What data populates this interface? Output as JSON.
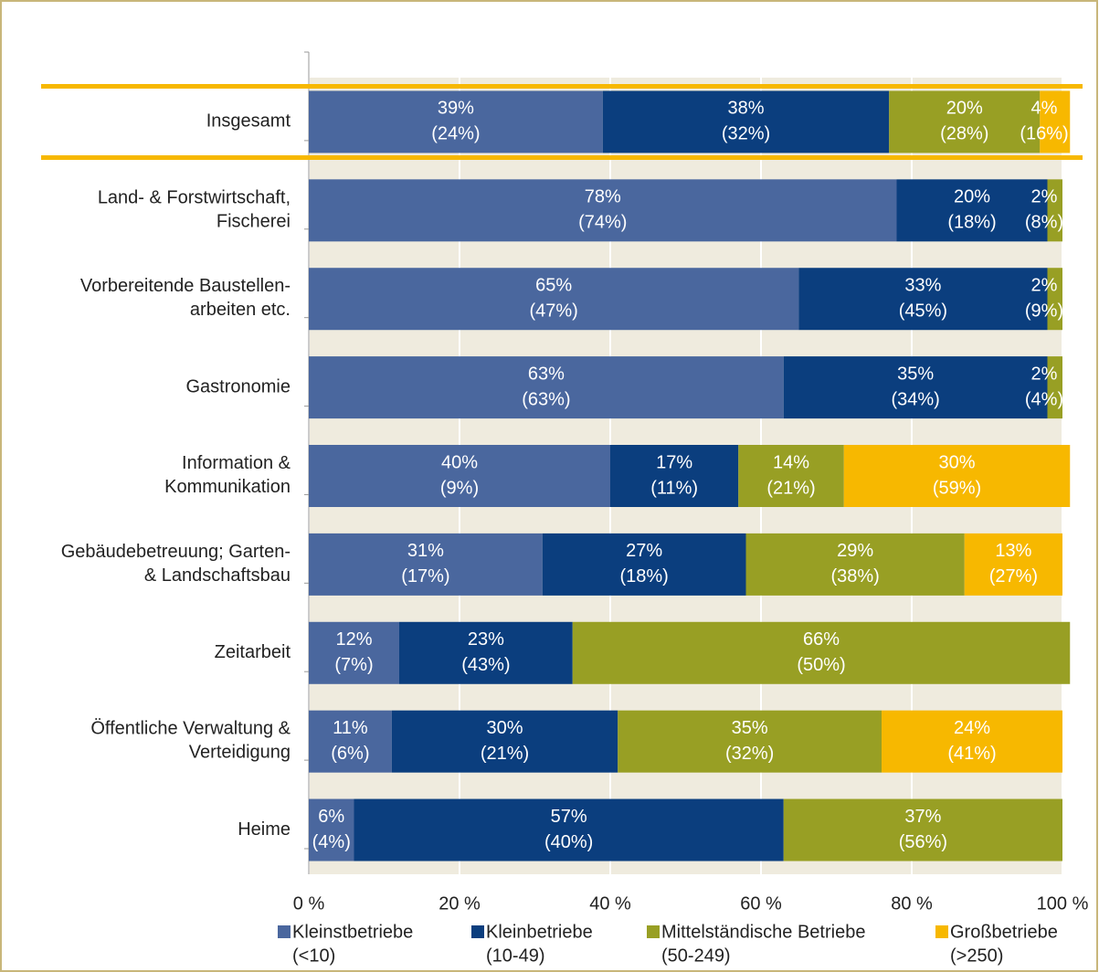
{
  "chart_data": {
    "type": "stacked_barh",
    "categories": [
      "Insgesamt",
      "Land- & Forstwirtschaft,\nFischerei",
      "Vorbereitende Baustellen-\narbeiten etc.",
      "Gastronomie",
      "Information &\nKommunikation",
      "Gebäudebetreuung; Garten-\n& Landschaftsbau",
      "Zeitarbeit",
      "Öffentliche Verwaltung &\nVerteidigung",
      "Heime"
    ],
    "highlight": "Insgesamt",
    "series": [
      {
        "name": "Kleinstbetriebe",
        "name_sub": "(<10)",
        "color": "#4a679e",
        "values": [
          39,
          78,
          65,
          63,
          40,
          31,
          12,
          11,
          6
        ],
        "value_labels": [
          "39%",
          "78%",
          "65%",
          "63%",
          "40%",
          "31%",
          "12%",
          "11%",
          "6%"
        ],
        "paren_values": [
          24,
          74,
          47,
          63,
          9,
          17,
          7,
          6,
          4
        ],
        "paren_labels": [
          "(24%)",
          "(74%)",
          "(47%)",
          "(63%)",
          "(9%)",
          "(17%)",
          "(7%)",
          "(6%)",
          "(4%)"
        ]
      },
      {
        "name": "Kleinbetriebe",
        "name_sub": "(10-49)",
        "color": "#0b3e7e",
        "values": [
          38,
          20,
          33,
          35,
          17,
          27,
          23,
          30,
          57
        ],
        "value_labels": [
          "38%",
          "20%",
          "33%",
          "35%",
          "17%",
          "27%",
          "23%",
          "30%",
          "57%"
        ],
        "paren_values": [
          32,
          18,
          45,
          34,
          11,
          18,
          43,
          21,
          40
        ],
        "paren_labels": [
          "(32%)",
          "(18%)",
          "(45%)",
          "(34%)",
          "(11%)",
          "(18%)",
          "(43%)",
          "(21%)",
          "(40%)"
        ]
      },
      {
        "name": "Mittelständische Betriebe",
        "name_sub": "(50-249)",
        "color": "#989f24",
        "values": [
          20,
          2,
          2,
          2,
          14,
          29,
          66,
          35,
          37
        ],
        "value_labels": [
          "20%",
          "2%",
          "2%",
          "2%",
          "14%",
          "29%",
          "66%",
          "35%",
          "37%"
        ],
        "paren_values": [
          28,
          8,
          9,
          4,
          21,
          38,
          50,
          32,
          56
        ],
        "paren_labels": [
          "(28%)",
          "(8%)",
          "(9%)",
          "(4%)",
          "(21%)",
          "(38%)",
          "(50%)",
          "(32%)",
          "(56%)"
        ]
      },
      {
        "name": "Großbetriebe",
        "name_sub": "(>250)",
        "color": "#f7b800",
        "values": [
          4,
          null,
          null,
          null,
          30,
          13,
          null,
          24,
          null
        ],
        "value_labels": [
          "4%",
          null,
          null,
          null,
          "30%",
          "13%",
          null,
          "24%",
          null
        ],
        "paren_values": [
          16,
          null,
          null,
          null,
          59,
          27,
          null,
          41,
          null
        ],
        "paren_labels": [
          "(16%)",
          null,
          null,
          null,
          "(59%)",
          "(27%)",
          null,
          "(41%)",
          null
        ]
      }
    ],
    "xlim": [
      0,
      100
    ],
    "xticks": [
      {
        "value": 0,
        "label": "0 %"
      },
      {
        "value": 20,
        "label": "20 %"
      },
      {
        "value": 40,
        "label": "40 %"
      },
      {
        "value": 60,
        "label": "60 %"
      },
      {
        "value": 80,
        "label": "80 %"
      },
      {
        "value": 100,
        "label": "100 %"
      }
    ],
    "grid": true,
    "legend": "bottom"
  }
}
